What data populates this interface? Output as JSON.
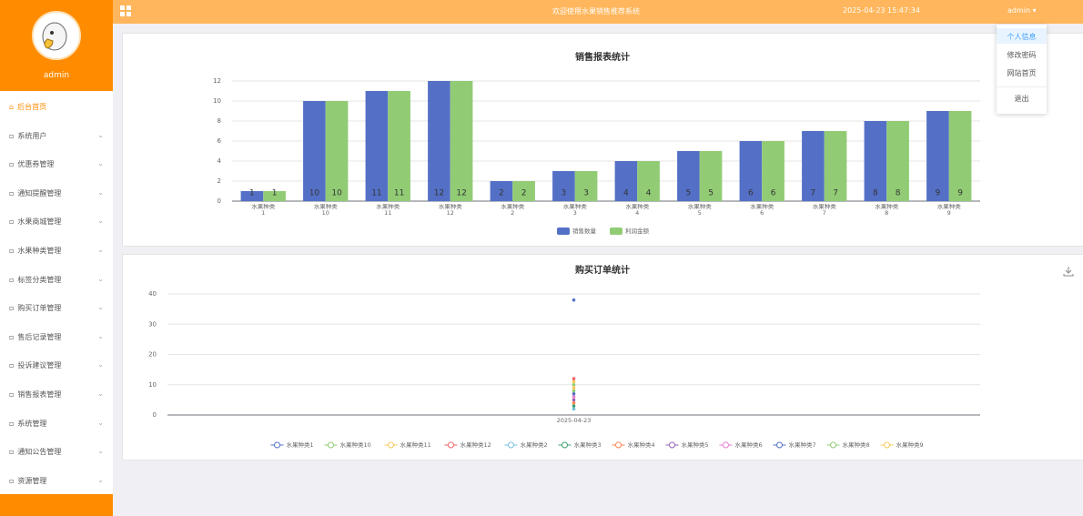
{
  "header": {
    "welcome": "欢迎使用水果销售推荐系统",
    "datetime": "2025-04-23 15:47:34",
    "user": "admin"
  },
  "sidebar": {
    "username": "admin",
    "menu": [
      "后台首页",
      "系统用户",
      "优惠券管理",
      "通知提醒管理",
      "水果商城管理",
      "水果种类管理",
      "标签分类管理",
      "购买订单管理",
      "售后记录管理",
      "投诉建议管理",
      "销售报表管理",
      "系统管理",
      "通知公告管理",
      "资源管理"
    ]
  },
  "dropdown": [
    "个人信息",
    "修改密码",
    "网站首页",
    "退出"
  ],
  "chart_data": [
    {
      "type": "bar",
      "title": "销售报表统计",
      "categories": [
        "水果种类1",
        "水果种类10",
        "水果种类11",
        "水果种类12",
        "水果种类2",
        "水果种类3",
        "水果种类4",
        "水果种类5",
        "水果种类6",
        "水果种类7",
        "水果种类8",
        "水果种类9"
      ],
      "series": [
        {
          "name": "销售数量",
          "color": "#5470c6",
          "values": [
            1,
            10,
            11,
            12,
            2,
            3,
            4,
            5,
            6,
            7,
            8,
            9
          ]
        },
        {
          "name": "利润金额",
          "color": "#91cc75",
          "values": [
            1,
            10,
            11,
            12,
            2,
            3,
            4,
            5,
            6,
            7,
            8,
            9
          ]
        }
      ],
      "ylim": [
        0,
        12
      ],
      "yticks": [
        0,
        2,
        4,
        6,
        8,
        10,
        12
      ],
      "grid": true
    },
    {
      "type": "line",
      "title": "购买订单统计",
      "x": [
        "2025-04-23"
      ],
      "series": [
        {
          "name": "水果种类1",
          "color": "#5470c6",
          "values": [
            38
          ]
        },
        {
          "name": "水果种类10",
          "color": "#91cc75",
          "values": [
            10
          ]
        },
        {
          "name": "水果种类11",
          "color": "#fac858",
          "values": [
            11
          ]
        },
        {
          "name": "水果种类12",
          "color": "#ee6666",
          "values": [
            12
          ]
        },
        {
          "name": "水果种类2",
          "color": "#73c0de",
          "values": [
            2
          ]
        },
        {
          "name": "水果种类3",
          "color": "#3ba272",
          "values": [
            3
          ]
        },
        {
          "name": "水果种类4",
          "color": "#fc8452",
          "values": [
            4
          ]
        },
        {
          "name": "水果种类5",
          "color": "#9a60b4",
          "values": [
            5
          ]
        },
        {
          "name": "水果种类6",
          "color": "#ea7ccc",
          "values": [
            6
          ]
        },
        {
          "name": "水果种类7",
          "color": "#5470c6",
          "values": [
            7
          ]
        },
        {
          "name": "水果种类8",
          "color": "#91cc75",
          "values": [
            8
          ]
        },
        {
          "name": "水果种类9",
          "color": "#fac858",
          "values": [
            9
          ]
        }
      ],
      "ylim": [
        0,
        40
      ],
      "yticks": [
        0,
        10,
        20,
        30,
        40
      ],
      "grid": true
    }
  ]
}
